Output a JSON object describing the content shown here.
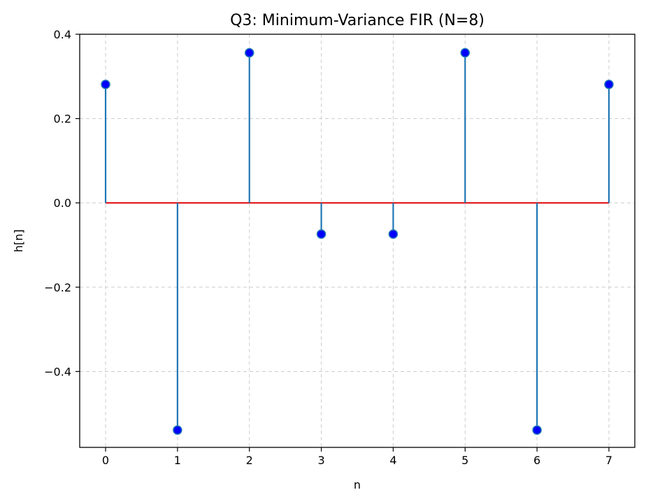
{
  "chart_data": {
    "type": "stem",
    "title": "Q3: Minimum-Variance FIR (N=8)",
    "xlabel": "n",
    "ylabel": "h[n]",
    "x": [
      0,
      1,
      2,
      3,
      4,
      5,
      6,
      7
    ],
    "values": [
      0.281,
      -0.539,
      0.356,
      -0.074,
      -0.074,
      0.356,
      -0.539,
      0.281
    ],
    "xlim": [
      -0.36,
      7.36
    ],
    "ylim": [
      -0.58,
      0.4
    ],
    "xticks": [
      0,
      1,
      2,
      3,
      4,
      5,
      6,
      7
    ],
    "xtick_labels": [
      "0",
      "1",
      "2",
      "3",
      "4",
      "5",
      "6",
      "7"
    ],
    "yticks": [
      0.4,
      0.2,
      0.0,
      -0.2,
      -0.4
    ],
    "ytick_labels": [
      "0.4",
      "0.2",
      "0.0",
      "−0.2",
      "−0.4"
    ],
    "grid": true,
    "colors": {
      "stem": "#1f77b4",
      "marker_fill": "#0000ff",
      "marker_edge": "#1f77b4",
      "baseline": "#e31a1c",
      "grid": "#cccccc"
    }
  }
}
